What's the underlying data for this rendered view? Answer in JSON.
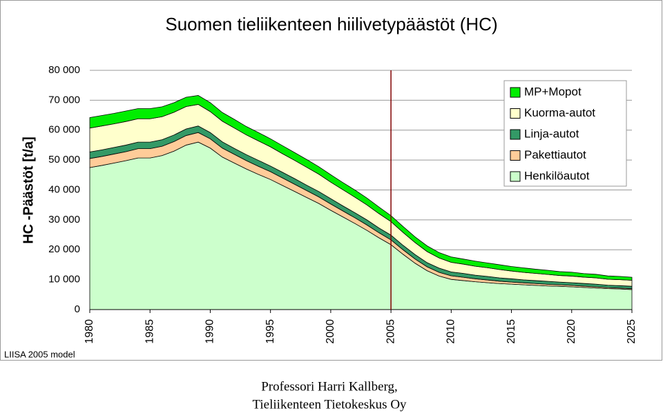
{
  "chart_data": {
    "type": "stacked-area",
    "title": "Suomen tieliikenteen hiilivetypäästöt (HC)",
    "y_label": "HC -Päästöt [t/a]",
    "note": "LIISA 2005 model",
    "footer": [
      "Professori Harri Kallberg,",
      "Tieliikenteen Tietokeskus Oy"
    ],
    "x": [
      1980,
      1981,
      1982,
      1983,
      1984,
      1985,
      1986,
      1987,
      1988,
      1989,
      1990,
      1991,
      1992,
      1993,
      1994,
      1995,
      1996,
      1997,
      1998,
      1999,
      2000,
      2001,
      2002,
      2003,
      2004,
      2005,
      2006,
      2007,
      2008,
      2009,
      2010,
      2011,
      2012,
      2013,
      2014,
      2015,
      2016,
      2017,
      2018,
      2019,
      2020,
      2021,
      2022,
      2023,
      2024,
      2025
    ],
    "xlim": [
      1980,
      2025
    ],
    "xticks": [
      1980,
      1985,
      1990,
      1995,
      2000,
      2005,
      2010,
      2015,
      2020,
      2025
    ],
    "vline": 2005,
    "ylim": [
      0,
      80000
    ],
    "yticks": [
      {
        "value": 0,
        "label": "0"
      },
      {
        "value": 10000,
        "label": "10 000"
      },
      {
        "value": 20000,
        "label": "20 000"
      },
      {
        "value": 30000,
        "label": "30 000"
      },
      {
        "value": 40000,
        "label": "40 000"
      },
      {
        "value": 50000,
        "label": "50 000"
      },
      {
        "value": 60000,
        "label": "60 000"
      },
      {
        "value": 70000,
        "label": "70 000"
      },
      {
        "value": 80000,
        "label": "80 000"
      }
    ],
    "grid": true,
    "legend": "upper right",
    "series": [
      {
        "name": "Henkilöautot",
        "color": "#ccffcc",
        "values": [
          47500,
          48200,
          49000,
          49800,
          50700,
          50700,
          51500,
          53000,
          55000,
          56000,
          54000,
          51000,
          49000,
          47000,
          45200,
          43500,
          41500,
          39500,
          37500,
          35500,
          33200,
          31000,
          28800,
          26500,
          24000,
          21700,
          18500,
          15500,
          13000,
          11200,
          10100,
          9700,
          9300,
          9000,
          8700,
          8500,
          8300,
          8100,
          7900,
          7800,
          7600,
          7400,
          7200,
          7000,
          6900,
          6700
        ]
      },
      {
        "name": "Pakettiautot",
        "color": "#ffcc99",
        "values": [
          3000,
          3000,
          3000,
          3000,
          3100,
          3100,
          3100,
          3200,
          3200,
          3200,
          3100,
          3000,
          2900,
          2800,
          2700,
          2600,
          2500,
          2400,
          2300,
          2200,
          2100,
          2000,
          1900,
          1800,
          1700,
          1600,
          1500,
          1400,
          1300,
          1250,
          1200,
          1100,
          1000,
          900,
          800,
          700,
          650,
          600,
          550,
          500,
          500,
          450,
          400,
          350,
          300,
          300
        ]
      },
      {
        "name": "Linja-autot",
        "color": "#339966",
        "values": [
          2200,
          2200,
          2200,
          2200,
          2200,
          2200,
          2200,
          2200,
          2200,
          2200,
          2100,
          2100,
          2000,
          2000,
          2000,
          1900,
          1900,
          1900,
          1800,
          1800,
          1800,
          1700,
          1700,
          1700,
          1600,
          1600,
          1500,
          1500,
          1400,
          1400,
          1300,
          1300,
          1200,
          1200,
          1100,
          1100,
          1000,
          1000,
          1000,
          900,
          900,
          900,
          900,
          800,
          800,
          800
        ]
      },
      {
        "name": "Kuorma-autot",
        "color": "#ffffcc",
        "values": [
          8000,
          8000,
          7900,
          7900,
          7800,
          7800,
          7700,
          7600,
          7500,
          7200,
          7000,
          6900,
          6800,
          6600,
          6500,
          6400,
          6200,
          6100,
          6000,
          5800,
          5500,
          5400,
          5200,
          5000,
          4800,
          4500,
          4300,
          4000,
          3700,
          3400,
          3200,
          3100,
          3000,
          2900,
          2800,
          2600,
          2500,
          2400,
          2300,
          2200,
          2200,
          2100,
          2100,
          2000,
          2000,
          2000
        ]
      },
      {
        "name": "MP+Mopot",
        "color": "#00ee00",
        "values": [
          3500,
          3500,
          3500,
          3500,
          3400,
          3400,
          3300,
          3200,
          3100,
          3000,
          3000,
          2900,
          2900,
          2800,
          2800,
          2700,
          2700,
          2600,
          2600,
          2500,
          2500,
          2400,
          2400,
          2300,
          2200,
          2000,
          2000,
          1900,
          1900,
          1800,
          1800,
          1700,
          1700,
          1600,
          1600,
          1500,
          1500,
          1400,
          1400,
          1300,
          1300,
          1200,
          1200,
          1100,
          1100,
          1000
        ]
      }
    ]
  }
}
